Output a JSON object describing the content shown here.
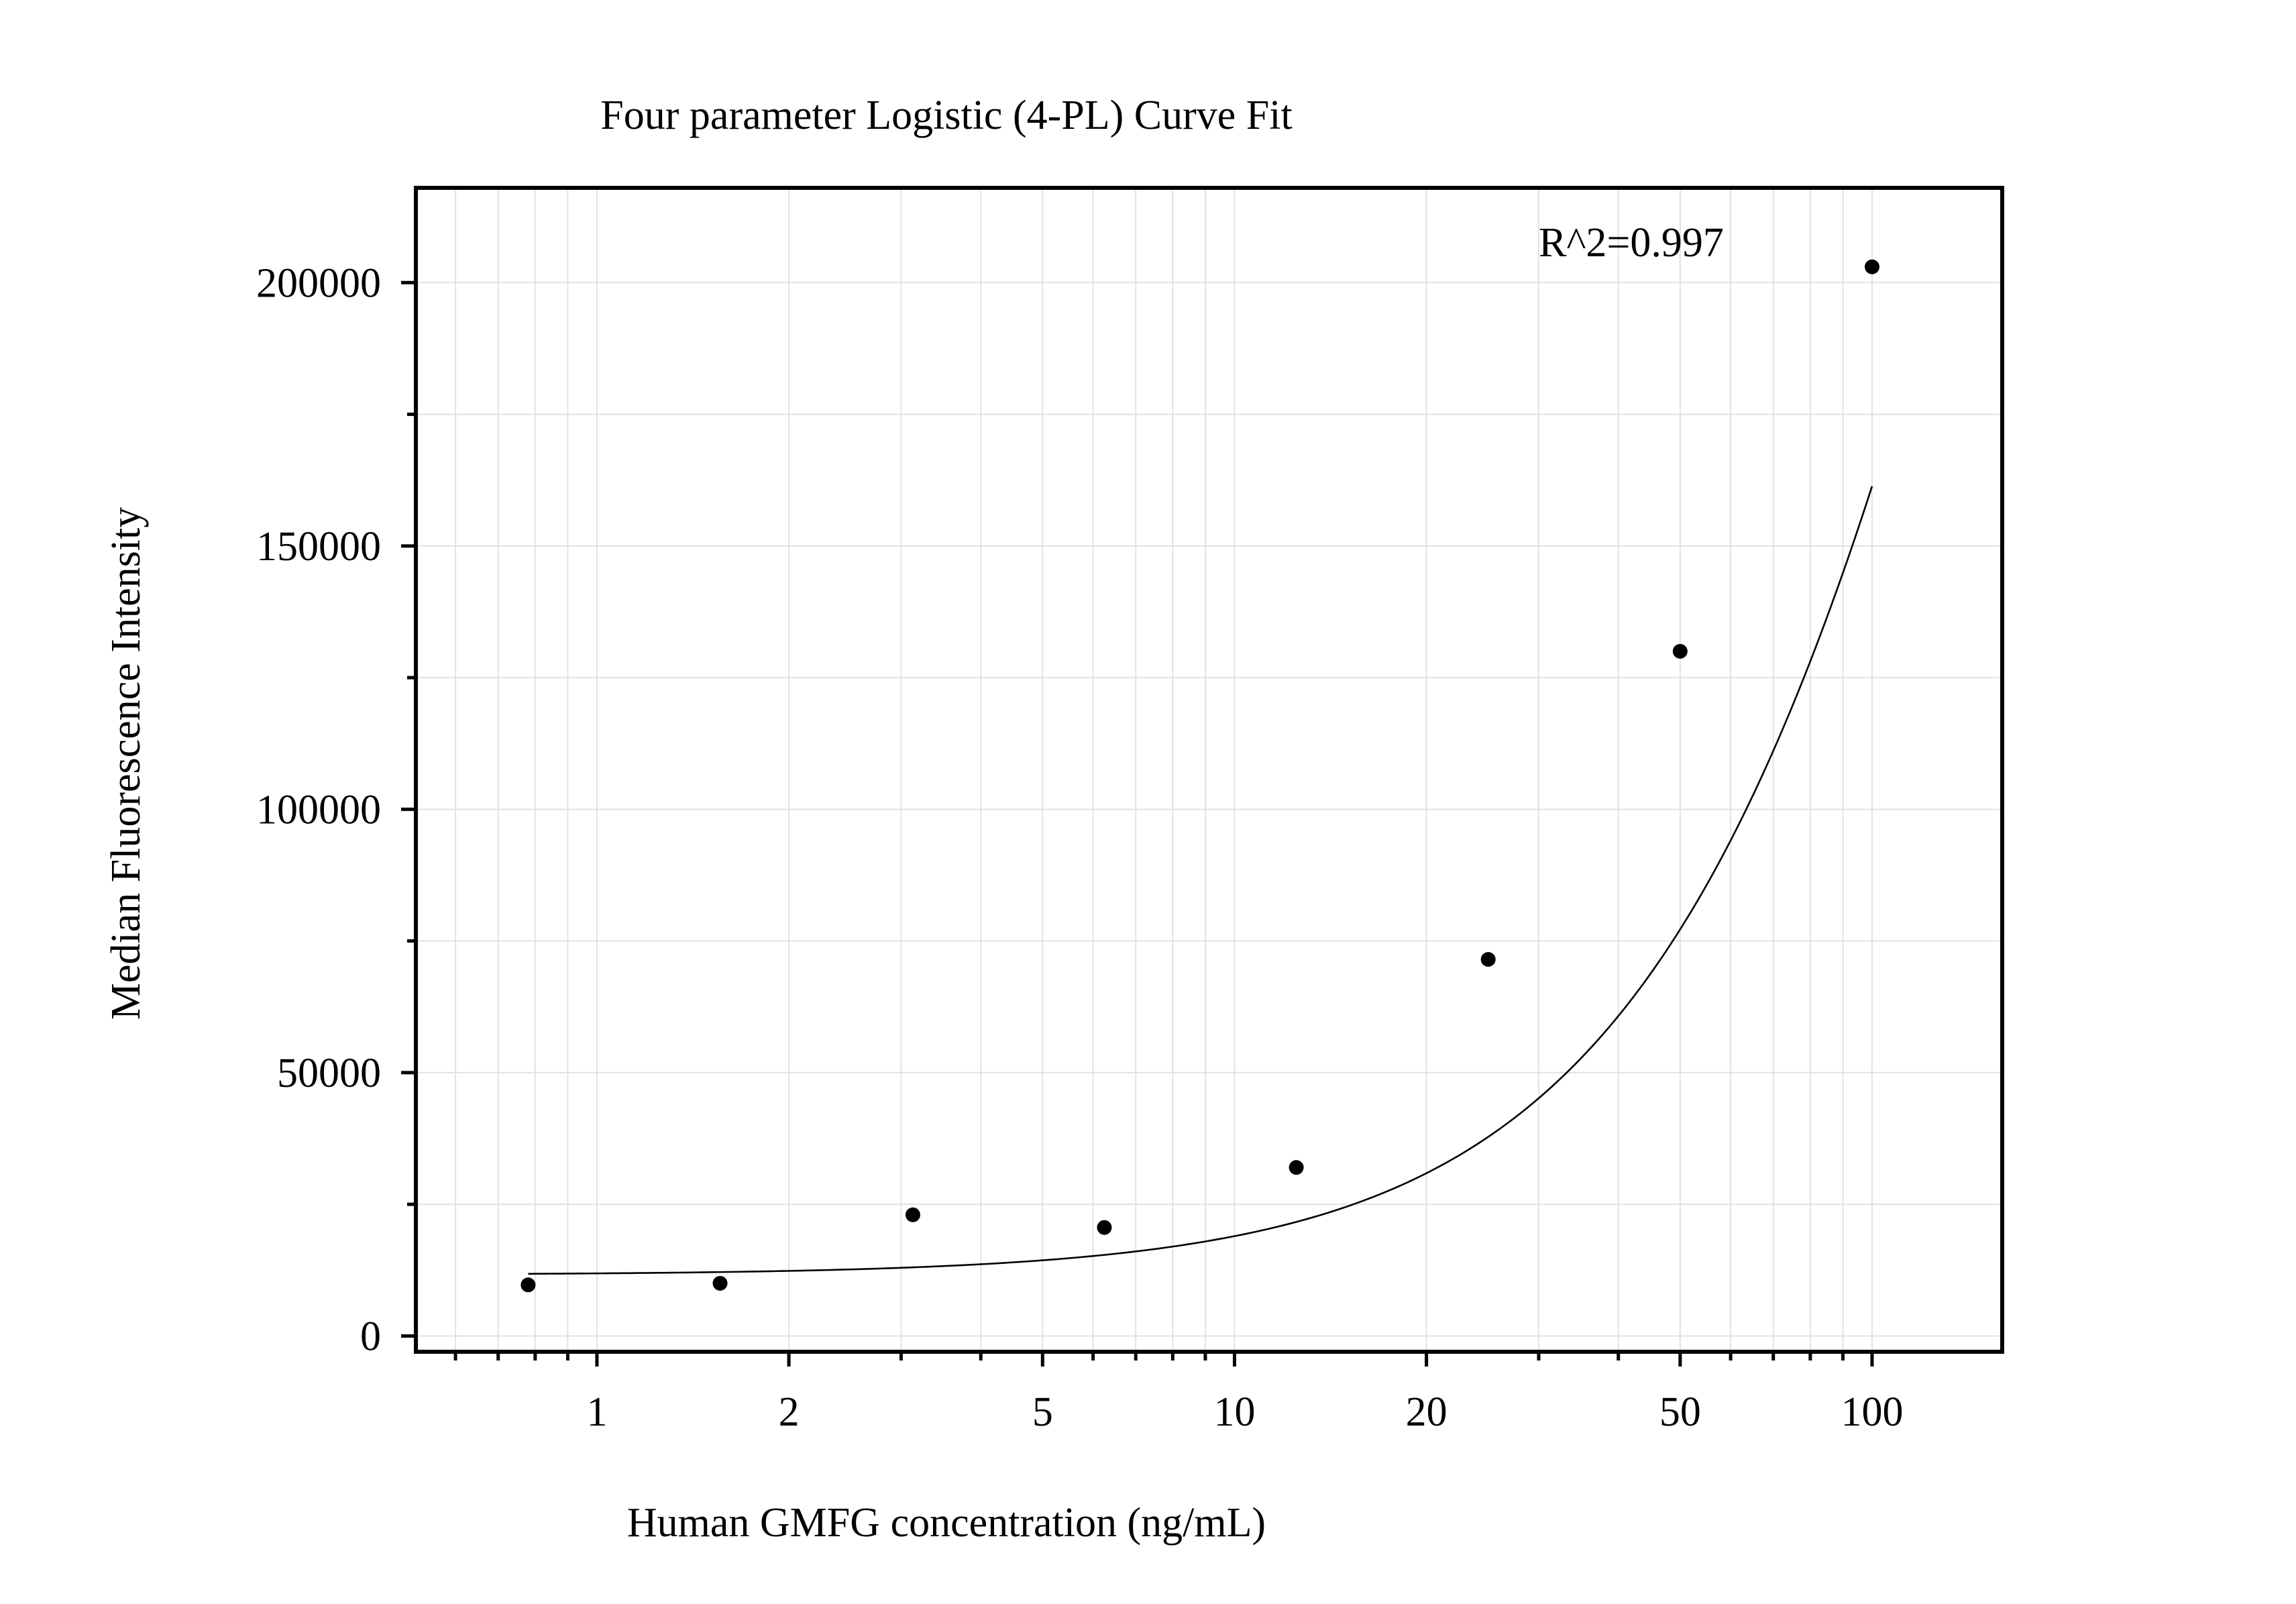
{
  "chart_data": {
    "type": "scatter",
    "title": "Four parameter Logistic (4-PL) Curve Fit",
    "xlabel": "Human GMFG concentration (ng/mL)",
    "ylabel": "Median Fluorescence Intensity",
    "x_scale": "log",
    "xlim": [
      0.52,
      160
    ],
    "ylim": [
      -3000,
      218000
    ],
    "x_ticks": [
      1,
      2,
      5,
      10,
      20,
      50,
      100
    ],
    "x_tick_labels": [
      "1",
      "2",
      "5",
      "10",
      "20",
      "50",
      "100"
    ],
    "y_ticks": [
      0,
      50000,
      100000,
      150000,
      200000
    ],
    "y_tick_labels": [
      "0",
      "50000",
      "100000",
      "150000",
      "200000"
    ],
    "grid": true,
    "series": [
      {
        "kind": "points",
        "x": [
          0.78,
          1.56,
          3.13,
          6.25,
          12.5,
          25,
          50,
          100
        ],
        "y": [
          9700,
          10000,
          23000,
          20600,
          32000,
          71500,
          130000,
          203000
        ]
      },
      {
        "kind": "fit",
        "model": "4-PL",
        "params": {
          "A": 11600,
          "D": 650000,
          "C": 230,
          "B": 1.42
        }
      }
    ],
    "annotations": [
      {
        "text": "R^2=0.997",
        "x": 30,
        "y": 205000
      }
    ],
    "colors": {
      "points": "#000000",
      "fit": "#000000",
      "grid": "#e2e2e2",
      "axes": "#000000"
    }
  }
}
